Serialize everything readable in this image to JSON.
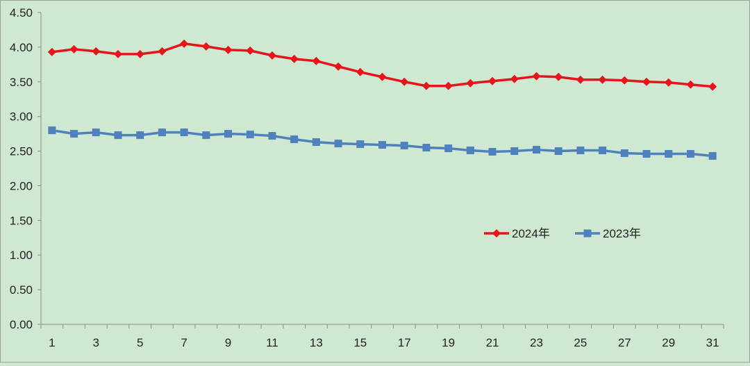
{
  "chart_data": {
    "type": "line",
    "title": "",
    "xlabel": "",
    "ylabel": "",
    "x": [
      1,
      2,
      3,
      4,
      5,
      6,
      7,
      8,
      9,
      10,
      11,
      12,
      13,
      14,
      15,
      16,
      17,
      18,
      19,
      20,
      21,
      22,
      23,
      24,
      25,
      26,
      27,
      28,
      29,
      30,
      31
    ],
    "x_tick_labels": [
      "1",
      "3",
      "5",
      "7",
      "9",
      "11",
      "13",
      "15",
      "17",
      "19",
      "21",
      "23",
      "25",
      "27",
      "29",
      "31"
    ],
    "y_tick_labels": [
      "0.00",
      "0.50",
      "1.00",
      "1.50",
      "2.00",
      "2.50",
      "3.00",
      "3.50",
      "4.00",
      "4.50"
    ],
    "ylim": [
      0,
      4.5
    ],
    "grid": false,
    "legend_position": "right-middle",
    "series": [
      {
        "name": "2024年",
        "color": "#e8141b",
        "marker": "diamond",
        "values": [
          3.93,
          3.97,
          3.94,
          3.9,
          3.9,
          3.94,
          4.05,
          4.01,
          3.96,
          3.95,
          3.88,
          3.83,
          3.8,
          3.72,
          3.64,
          3.57,
          3.5,
          3.44,
          3.44,
          3.48,
          3.51,
          3.54,
          3.58,
          3.57,
          3.53,
          3.53,
          3.52,
          3.5,
          3.49,
          3.46,
          3.43
        ]
      },
      {
        "name": "2023年",
        "color": "#4f81bd",
        "marker": "square",
        "values": [
          2.8,
          2.75,
          2.77,
          2.73,
          2.73,
          2.77,
          2.77,
          2.73,
          2.75,
          2.74,
          2.72,
          2.67,
          2.63,
          2.61,
          2.6,
          2.59,
          2.58,
          2.55,
          2.54,
          2.51,
          2.49,
          2.5,
          2.52,
          2.5,
          2.51,
          2.51,
          2.47,
          2.46,
          2.46,
          2.46,
          2.43
        ]
      }
    ]
  }
}
